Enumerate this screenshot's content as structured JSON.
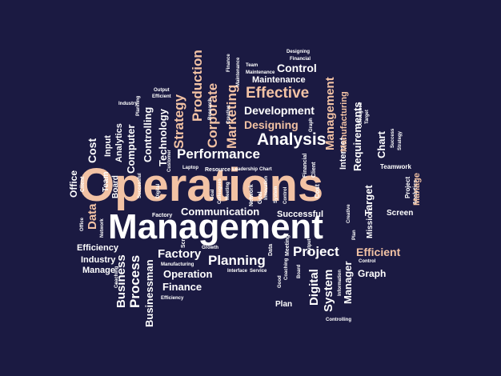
{
  "colors": {
    "background": "#1b1a42",
    "primary_text": "#ffffff",
    "accent_text": "#f2c2a4"
  },
  "words": {
    "operations": "Operations",
    "management": "Management",
    "communication": "Communication",
    "successful": "Successful",
    "performance": "Performance",
    "analysis": "Analysis",
    "designing": "Designing",
    "development": "Development",
    "effective": "Effective",
    "maintenance": "Maintenance",
    "control": "Control",
    "strategy": "Strategy",
    "production": "Production",
    "corporate": "Corporate",
    "marketing": "Marketing",
    "technology": "Technology",
    "computer": "Computer",
    "controlling": "Controlling",
    "analytics": "Analytics",
    "input": "Input",
    "cost": "Cost",
    "team": "Team",
    "board": "Board",
    "office": "Office",
    "data": "Data",
    "efficiency": "Efficiency",
    "industry": "Industry",
    "manage": "Manage",
    "business": "Business",
    "process": "Process",
    "businessman": "Businessman",
    "factory": "Factory",
    "planning": "Planning",
    "operation": "Operation",
    "finance": "Finance",
    "project": "Project",
    "efficient": "Efficient",
    "graph": "Graph",
    "digital": "Digital",
    "system": "System",
    "manager": "Manager",
    "plan": "Plan",
    "screen": "Screen",
    "mission": "Mission",
    "target": "Target",
    "chart": "Chart",
    "requirements": "Requirements",
    "internet": "Internet",
    "manufacturing": "Manufacturing",
    "teamwork": "Teamwork",
    "designing_small": "Designing",
    "financial": "Financial",
    "team_small": "Team",
    "maintenance_small": "Maintenance",
    "output": "Output",
    "efficient_small": "Efficient",
    "laptop": "Laptop",
    "resource": "Resource",
    "leadership": "Leadership",
    "chart_small": "Chart",
    "client": "Client",
    "growth": "Growth",
    "interface": "Interface",
    "controlling_small": "Controlling",
    "efficiency_small": "Efficiency",
    "network": "Network",
    "office_small": "Office",
    "factory_small": "Factory",
    "service": "Service",
    "colleagues": "Colleagues",
    "strategy_small": "Strategy",
    "analytics_small": "Analytics",
    "customer": "Customer",
    "manufacturing_small": "Manufacturing",
    "success": "Success",
    "innovation": "Innovation",
    "graph_small": "Graph",
    "industry_small": "Industry",
    "information": "Information",
    "creative": "Creative",
    "planning_small": "Planning",
    "coaching": "Coaching",
    "good": "Good",
    "control_small": "Control",
    "meeting": "Meeting",
    "goal": "Goal",
    "digital_small": "Digital",
    "board_small": "Board",
    "project_small": "Project",
    "plan_small": "Plan",
    "system_small": "System",
    "research": "Research",
    "cost_small": "Cost",
    "target_small": "Target"
  }
}
